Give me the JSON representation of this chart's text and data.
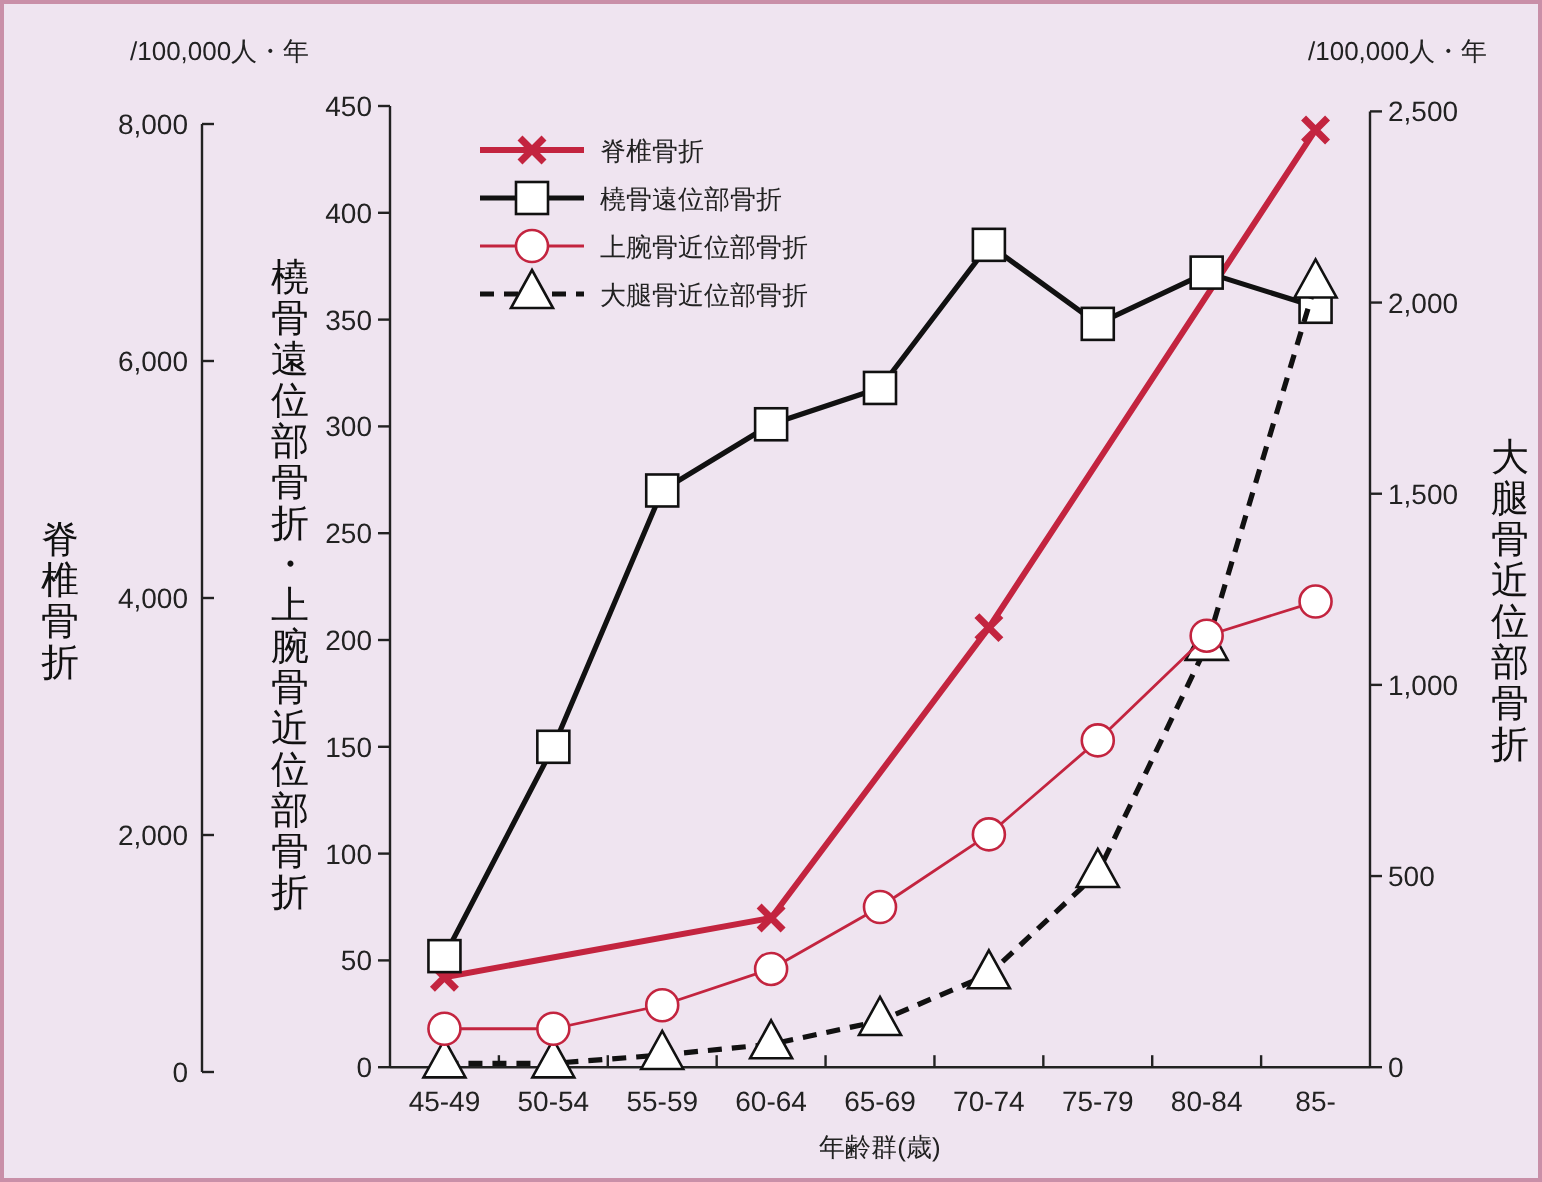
{
  "chart_data": {
    "type": "line",
    "xlabel": "年齢群(歳)",
    "ylabel": "橈骨遠位部骨折・上腕骨近位部骨折",
    "y2label": "大腿骨近位部骨折",
    "y3label": "脊椎骨折",
    "categories": [
      "45-49",
      "50-54",
      "55-59",
      "60-64",
      "65-69",
      "70-74",
      "75-79",
      "80-84",
      "85-"
    ],
    "ylim": [
      0,
      450
    ],
    "yticks": [
      0,
      50,
      100,
      150,
      200,
      250,
      300,
      350,
      400,
      450
    ],
    "y2lim": [
      0,
      2500
    ],
    "y2ticks": [
      0,
      500,
      {
        "value": 1000,
        "label": "1,000"
      },
      {
        "value": 1500,
        "label": "1,500"
      },
      {
        "value": 2000,
        "label": "2,000"
      },
      {
        "value": 2500,
        "label": "2,500"
      }
    ],
    "y3lim": [
      0,
      8000
    ],
    "y3ticks": [
      0,
      {
        "value": 2000,
        "label": "2,000"
      },
      {
        "value": 4000,
        "label": "4,000"
      },
      {
        "value": 6000,
        "label": "6,000"
      },
      {
        "value": 8000,
        "label": "8,000"
      }
    ],
    "legend": "top left",
    "grid": false,
    "annotations": [
      "/100,000人・年",
      "/100,000人・年"
    ],
    "series": [
      {
        "name": "脊椎骨折",
        "color": "#c3243f",
        "axis": "y3",
        "marker": "cross",
        "line_style": "solid",
        "values": [
          800,
          null,
          null,
          1300,
          null,
          3750,
          null,
          null,
          7950
        ]
      },
      {
        "name": "橈骨遠位部骨折",
        "color": "#111111",
        "axis": "y",
        "marker": "square",
        "line_style": "solid",
        "values": [
          52,
          150,
          270,
          301,
          318,
          385,
          348,
          372,
          356
        ]
      },
      {
        "name": "上腕骨近位部骨折",
        "color": "#c3243f",
        "axis": "y",
        "marker": "circle",
        "line_style": "solid",
        "values": [
          18,
          18,
          29,
          46,
          75,
          109,
          153,
          202,
          218
        ]
      },
      {
        "name": "大腿骨近位部骨折",
        "color": "#111111",
        "axis": "y2",
        "marker": "triangle",
        "line_style": "dashed",
        "values": [
          10,
          10,
          32,
          60,
          121,
          243,
          508,
          1102,
          2050
        ]
      }
    ]
  }
}
